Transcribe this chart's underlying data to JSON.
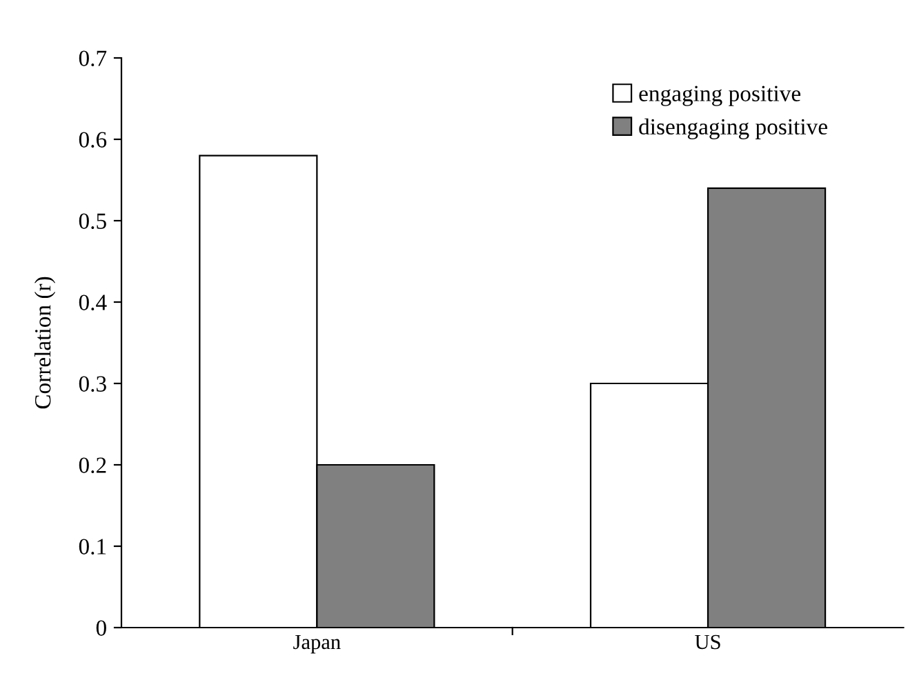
{
  "chart_data": {
    "type": "bar",
    "ylabel": "Correlation (r)",
    "categories": [
      "Japan",
      "US"
    ],
    "series": [
      {
        "name": "engaging positive",
        "color": "#ffffff",
        "values": [
          0.58,
          0.3
        ]
      },
      {
        "name": "disengaging positive",
        "color": "#808080",
        "values": [
          0.2,
          0.54
        ]
      }
    ],
    "ylim": [
      0,
      0.7
    ],
    "yticks": [
      0,
      0.1,
      0.2,
      0.3,
      0.4,
      0.5,
      0.6,
      0.7
    ],
    "grid": false,
    "legend": "top right"
  }
}
